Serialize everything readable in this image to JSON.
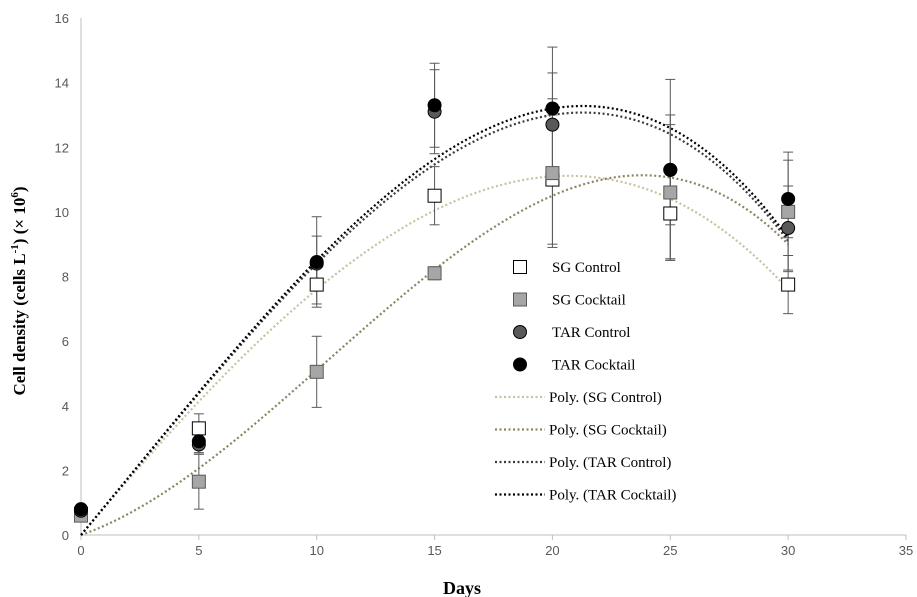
{
  "chart_data": {
    "type": "scatter",
    "title": "",
    "xlabel": "Days",
    "ylabel_main": "Cell density (cells L",
    "ylabel_sup1": "-1",
    "ylabel_mid": ") (× 10",
    "ylabel_sup2": "6",
    "ylabel_end": ")",
    "xlim": [
      0,
      35
    ],
    "ylim": [
      0,
      16
    ],
    "x_ticks": [
      0,
      5,
      10,
      15,
      20,
      25,
      30,
      35
    ],
    "y_ticks": [
      0,
      2,
      4,
      6,
      8,
      10,
      12,
      14,
      16
    ],
    "grid": false,
    "legend_position": "center-right",
    "series": [
      {
        "name": "SG Control",
        "marker": "square",
        "fill": "#ffffff",
        "stroke": "#000000",
        "x": [
          0,
          5,
          10,
          15,
          20,
          25,
          30
        ],
        "y": [
          0.65,
          3.3,
          7.75,
          10.5,
          11.0,
          9.95,
          7.75
        ],
        "err": [
          0.1,
          0.45,
          0.6,
          0.9,
          2.0,
          1.4,
          0.9
        ]
      },
      {
        "name": "SG Cocktail",
        "marker": "square",
        "fill": "#a6a6a6",
        "stroke": "#595959",
        "x": [
          0,
          5,
          10,
          15,
          20,
          25,
          30
        ],
        "y": [
          0.6,
          1.65,
          5.05,
          8.1,
          11.2,
          10.6,
          10.0
        ],
        "err": [
          0.1,
          0.85,
          1.1,
          0.2,
          2.3,
          2.1,
          1.85
        ]
      },
      {
        "name": "TAR Control",
        "marker": "circle",
        "fill": "#595959",
        "stroke": "#000000",
        "x": [
          0,
          5,
          10,
          15,
          20,
          25,
          30
        ],
        "y": [
          0.75,
          2.8,
          8.4,
          13.1,
          12.7,
          11.3,
          9.5
        ],
        "err": [
          0.1,
          0.3,
          0.85,
          1.3,
          1.6,
          1.7,
          1.3
        ]
      },
      {
        "name": "TAR Cocktail",
        "marker": "circle",
        "fill": "#000000",
        "stroke": "#000000",
        "x": [
          0,
          5,
          10,
          15,
          20,
          25,
          30
        ],
        "y": [
          0.8,
          2.9,
          8.45,
          13.3,
          13.2,
          11.3,
          10.4
        ],
        "err": [
          0.1,
          0.35,
          1.4,
          1.3,
          1.9,
          2.8,
          1.2
        ]
      }
    ],
    "trendlines": [
      {
        "name": "Poly. (SG Control)",
        "color": "#c7c2a0",
        "x_range": [
          0,
          30
        ],
        "points": [
          [
            0,
            0
          ],
          [
            10,
            7.6
          ],
          [
            20,
            11.1
          ],
          [
            30,
            7.6
          ]
        ]
      },
      {
        "name": "Poly. (SG Cocktail)",
        "color": "#8c8460",
        "x_range": [
          0,
          30
        ],
        "points": [
          [
            0,
            0
          ],
          [
            10,
            5.1
          ],
          [
            20,
            10.5
          ],
          [
            30,
            9.0
          ]
        ]
      },
      {
        "name": "Poly. (TAR Control)",
        "color": "#3a3a3a",
        "x_range": [
          0,
          30
        ],
        "points": [
          [
            0,
            0
          ],
          [
            10,
            8.4
          ],
          [
            20,
            13.0
          ],
          [
            30,
            9.1
          ]
        ]
      },
      {
        "name": "Poly. (TAR Cocktail)",
        "color": "#000000",
        "x_range": [
          0,
          30
        ],
        "points": [
          [
            0,
            0
          ],
          [
            10,
            8.5
          ],
          [
            20,
            13.2
          ],
          [
            30,
            9.2
          ]
        ]
      }
    ]
  }
}
